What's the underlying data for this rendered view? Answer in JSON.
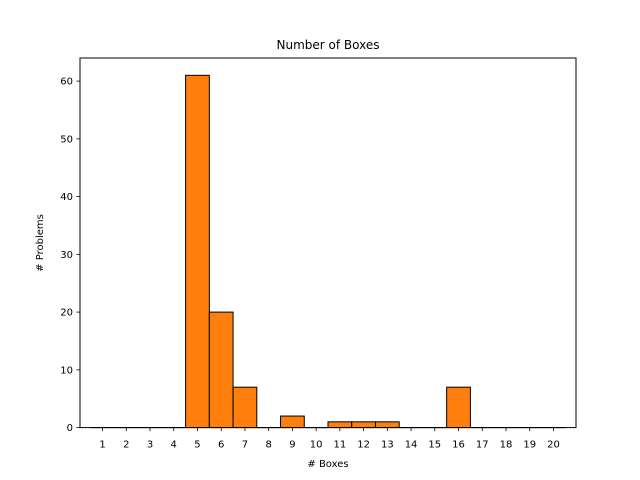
{
  "chart_data": {
    "type": "bar",
    "title": "Number of Boxes",
    "xlabel": "# Boxes",
    "ylabel": "# Problems",
    "categories": [
      "1",
      "2",
      "3",
      "4",
      "5",
      "6",
      "7",
      "8",
      "9",
      "10",
      "11",
      "12",
      "13",
      "14",
      "15",
      "16",
      "17",
      "18",
      "19",
      "20"
    ],
    "values": [
      0,
      0,
      0,
      0,
      61,
      20,
      7,
      0,
      2,
      0,
      1,
      1,
      1,
      0,
      0,
      7,
      0,
      0,
      0,
      0
    ],
    "ylim": [
      0,
      64
    ],
    "yticks": [
      0,
      10,
      20,
      30,
      40,
      50,
      60
    ],
    "grid": false,
    "bar_color": "#ff7f0e",
    "edge_color": "#000000"
  }
}
